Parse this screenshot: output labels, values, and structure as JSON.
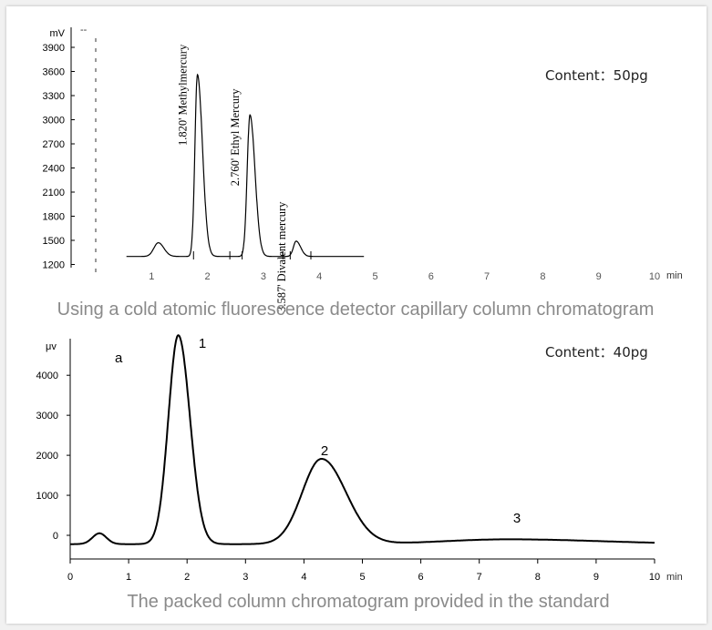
{
  "chart_data": [
    {
      "type": "line",
      "caption": "Using a cold atomic fluorescence detector capillary column chromatogram",
      "ylabel": "mV",
      "xunit": "min",
      "ylim": [
        1200,
        4000
      ],
      "xlim": [
        0,
        10
      ],
      "yticks": [
        "1200",
        "1500",
        "1800",
        "2100",
        "2400",
        "2700",
        "3000",
        "3300",
        "3600",
        "3900"
      ],
      "ytick_values": [
        1200,
        1500,
        1800,
        2100,
        2400,
        2700,
        3000,
        3300,
        3600,
        3900
      ],
      "xticks": [
        "1",
        "2",
        "3",
        "4",
        "5",
        "6",
        "7",
        "8",
        "9",
        "10"
      ],
      "xtick_values": [
        1,
        2,
        3,
        4,
        5,
        6,
        7,
        8,
        9,
        10
      ],
      "legend_mark": "--",
      "content_label": "Content：50pg",
      "trace_end_min": 4.8,
      "baseline": 1300,
      "peaks": [
        {
          "time": 1.12,
          "height": 1470,
          "label": ""
        },
        {
          "time": 1.82,
          "height": 3560,
          "label": "1.820' Methylmercury"
        },
        {
          "time": 2.76,
          "height": 3060,
          "label": "2.760' Ethyl Mercury"
        },
        {
          "time": 3.587,
          "height": 1490,
          "label": "3.587' Divalent mercury"
        }
      ]
    },
    {
      "type": "line",
      "caption": "The packed column chromatogram provided in the standard",
      "ylabel": "μv",
      "xunit": "min",
      "ylim": [
        -600,
        5000
      ],
      "xlim": [
        0,
        10
      ],
      "yticks": [
        "0",
        "1000",
        "2000",
        "3000",
        "4000"
      ],
      "ytick_values": [
        0,
        1000,
        2000,
        3000,
        4000
      ],
      "xticks": [
        "0",
        "1",
        "2",
        "3",
        "4",
        "5",
        "6",
        "7",
        "8",
        "9",
        "10"
      ],
      "xtick_values": [
        0,
        1,
        2,
        3,
        4,
        5,
        6,
        7,
        8,
        9,
        10
      ],
      "panel_label": "a",
      "content_label": "Content：40pg",
      "baseline": -220,
      "peaks": [
        {
          "time": 0.5,
          "height": 50,
          "label": ""
        },
        {
          "time": 1.85,
          "height": 5000,
          "label": "1"
        },
        {
          "time": 4.3,
          "height": 1910,
          "label": "2"
        },
        {
          "time": 7.5,
          "height": -100,
          "label": "3"
        }
      ]
    }
  ]
}
